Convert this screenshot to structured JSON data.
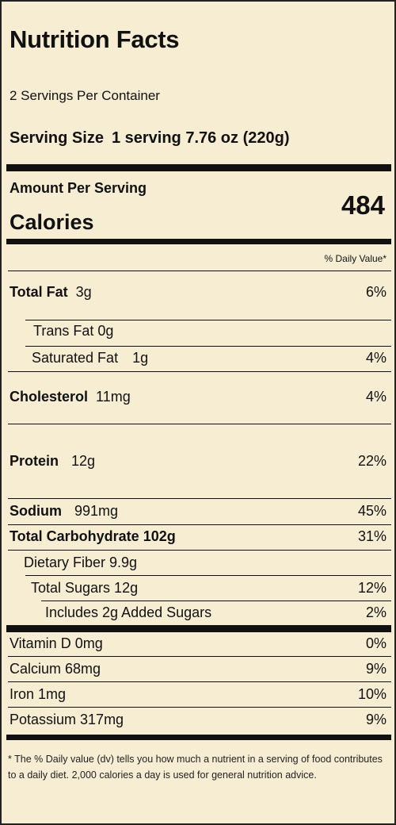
{
  "label": {
    "title": "Nutrition Facts",
    "servings_per_container": "2 Servings Per Container",
    "serving_size_label": "Serving Size",
    "serving_size_value": "1 serving 7.76 oz (220g)",
    "amount_per_serving": "Amount Per Serving",
    "calories_label": "Calories",
    "calories_value": "484",
    "daily_value_header": "% Daily Value*"
  },
  "nutrients": {
    "total_fat": {
      "name": "Total Fat",
      "amount": "3g",
      "dv": "6%"
    },
    "trans_fat": {
      "name": "Trans Fat 0g",
      "dv": ""
    },
    "saturated_fat": {
      "name": "Saturated Fat",
      "amount": "1g",
      "dv": "4%"
    },
    "cholesterol": {
      "name": "Cholesterol",
      "amount": "11mg",
      "dv": "4%"
    },
    "protein": {
      "name": "Protein",
      "amount": "12g",
      "dv": "22%"
    },
    "sodium": {
      "name": "Sodium",
      "amount": "991mg",
      "dv": "45%"
    },
    "total_carbohydrate": {
      "name": "Total Carbohydrate 102g",
      "dv": "31%"
    },
    "dietary_fiber": {
      "name": "Dietary Fiber 9.9g",
      "dv": ""
    },
    "total_sugars": {
      "name": "Total Sugars 12g",
      "dv": "12%"
    },
    "added_sugars": {
      "name": "Includes 2g Added Sugars",
      "dv": "2%"
    },
    "vitamin_d": {
      "name": "Vitamin D 0mg",
      "dv": "0%"
    },
    "calcium": {
      "name": "Calcium 68mg",
      "dv": "9%"
    },
    "iron": {
      "name": "Iron 1mg",
      "dv": "10%"
    },
    "potassium": {
      "name": "Potassium 317mg",
      "dv": "9%"
    }
  },
  "footnote": "* The % Daily value (dv) tells you how much a nutrient in a serving of food contributes to a daily diet. 2,000 calories a day is used for general nutrition advice.",
  "colors": {
    "background": "#f6edd3",
    "rule": "#111111",
    "text": "#111111"
  }
}
